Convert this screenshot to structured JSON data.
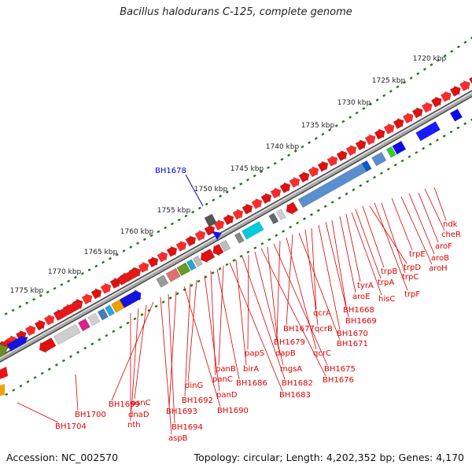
{
  "title": "Bacillus halodurans C-125, complete genome",
  "footer": {
    "accession": "Accession: NC_002570",
    "topology": "Topology: circular; Length: 4,202,352 bp; Genes: 4,170"
  },
  "colors": {
    "gene_label": "#dd0000",
    "highlight_label": "#0000cc",
    "ruler_dots": "#1a7a1a",
    "backbone": "#888888"
  },
  "ruler": {
    "unit": "kbp",
    "ticks": [
      "1720 kbp",
      "1725 kbp",
      "1730 kbp",
      "1735 kbp",
      "1740 kbp",
      "1745 kbp",
      "1750 kbp",
      "1755 kbp",
      "1760 kbp",
      "1765 kbp",
      "1770 kbp",
      "1775 kbp"
    ]
  },
  "highlight": {
    "label": "BH1678"
  },
  "gene_labels": [
    "ndk",
    "cheR",
    "aroF",
    "aroB",
    "aroH",
    "trpE",
    "trpC",
    "trpF",
    "trpD",
    "trpB",
    "trpA",
    "hisC",
    "tyrA",
    "aroE",
    "BH1668",
    "BH1669",
    "BH1670",
    "qcrA",
    "qcrB",
    "BH1671",
    "BH1677",
    "qcrC",
    "BH1679",
    "BH1675",
    "dapB",
    "BH1676",
    "mgsA",
    "papS",
    "BH1682",
    "birA",
    "BH1683",
    "panB",
    "BH1686",
    "panC",
    "panD",
    "dinG",
    "BH1692",
    "BH1690",
    "BH1693",
    "BH1694",
    "aspB",
    "BH1699",
    "asnC",
    "dnaD",
    "nth",
    "BH1700",
    "BH1704"
  ]
}
